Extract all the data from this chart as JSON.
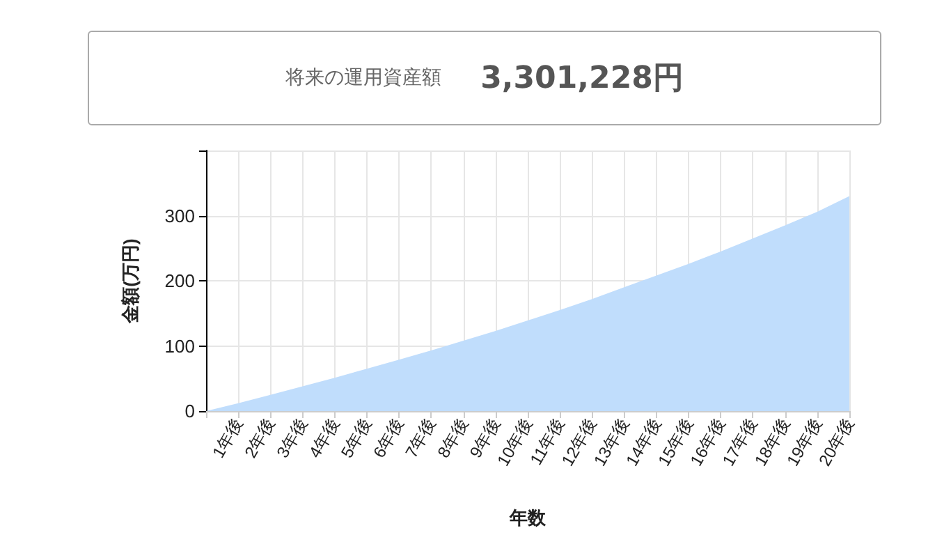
{
  "chart_data": {
    "type": "area",
    "title": "将来の運用資産額",
    "subtitle": "3,301,228円",
    "xlabel": "年数",
    "ylabel": "金額(万円)",
    "categories": [
      null,
      "1年後",
      "2年後",
      "3年後",
      "4年後",
      "5年後",
      "6年後",
      "7年後",
      "8年後",
      "9年後",
      "10年後",
      "11年後",
      "12年後",
      "13年後",
      "14年後",
      "15年後",
      "16年後",
      "17年後",
      "18年後",
      "19年後",
      "20年後"
    ],
    "series": [
      {
        "color": "#c0ddfc",
        "values": [
          0,
          12,
          25,
          38,
          51,
          65,
          79,
          93,
          108,
          123,
          139,
          155,
          172,
          190,
          208,
          226,
          245,
          265,
          285,
          306,
          330
        ]
      }
    ],
    "ylim": [
      0,
      400
    ],
    "yticks": [
      0,
      100,
      200,
      300,
      {
        "value": 400,
        "label": null
      }
    ],
    "grid": true
  }
}
